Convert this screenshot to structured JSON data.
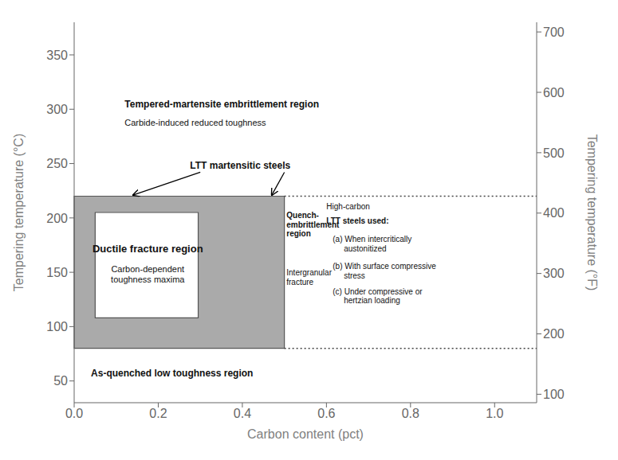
{
  "chart_data": {
    "type": "region",
    "xlabel": "Carbon content (pct)",
    "ylabel": "Tempering temperature (°C)",
    "y2label": "Tempering temperature (°F)",
    "xlim": [
      0,
      1.1
    ],
    "xticks": [
      {
        "value": 0,
        "label": "0.0"
      },
      0.2,
      0.4,
      0.6,
      0.8,
      {
        "value": 1,
        "label": "1.0"
      }
    ],
    "ylim": [
      30,
      380
    ],
    "yticks": [
      50,
      100,
      150,
      200,
      250,
      300,
      350
    ],
    "y2lim": [
      86,
      716
    ],
    "y2ticks": [
      100,
      200,
      300,
      400,
      500,
      600,
      700
    ],
    "grid": false,
    "regions": [
      {
        "x0": 0.0,
        "x1": 0.5,
        "y0": 80,
        "y1": 220,
        "color": "#aaaaaa"
      },
      {
        "x0": 0.05,
        "x1": 0.295,
        "y0": 108,
        "y1": 205,
        "color": "#ffffff"
      }
    ],
    "lines": [
      {
        "x": [
          0.5,
          1.1
        ],
        "y": [
          220,
          220
        ],
        "line_style": "dotted"
      },
      {
        "x": [
          0.5,
          1.1
        ],
        "y": [
          80,
          80
        ],
        "line_style": "dotted"
      }
    ],
    "arrows": [
      {
        "x": [
          0.3,
          0.14
        ],
        "y": [
          242,
          221
        ]
      },
      {
        "x": [
          0.5,
          0.47
        ],
        "y": [
          242,
          221
        ]
      }
    ],
    "annotations": [
      {
        "text": "Tempered-martensite embrittlement region",
        "x": 0.12,
        "y": 302
      },
      {
        "text": "Carbide-induced reduced toughness",
        "x": 0.12,
        "y": 285
      },
      {
        "text": "LTT martensitic steels",
        "x": 0.395,
        "y": 248
      },
      {
        "text": "Ductile fracture region",
        "x": 0.175,
        "y": 172
      },
      {
        "text": "Carbon-dependent\ntoughness maxima",
        "x": 0.175,
        "y": 156
      },
      {
        "text": "Quench-\nembrittlement\nregion",
        "x": 0.505,
        "y": 205
      },
      {
        "text": "Intergranular\nfracture",
        "x": 0.505,
        "y": 152
      },
      {
        "text": "As-quenched low toughness region",
        "x": 0.04,
        "y": 57
      },
      {
        "text": "High-carbon",
        "x": 0.6,
        "y": 208
      },
      {
        "text": "LTT steels used:",
        "x": 0.6,
        "y": 195
      },
      {
        "text": "(a) When intercritically\n     austonitized",
        "x": 0.615,
        "y": 183
      },
      {
        "text": "(b) With surface compressive\n     stress",
        "x": 0.615,
        "y": 158
      },
      {
        "text": "(c) Under compressive or\n     hertzian loading",
        "x": 0.615,
        "y": 135
      }
    ]
  }
}
